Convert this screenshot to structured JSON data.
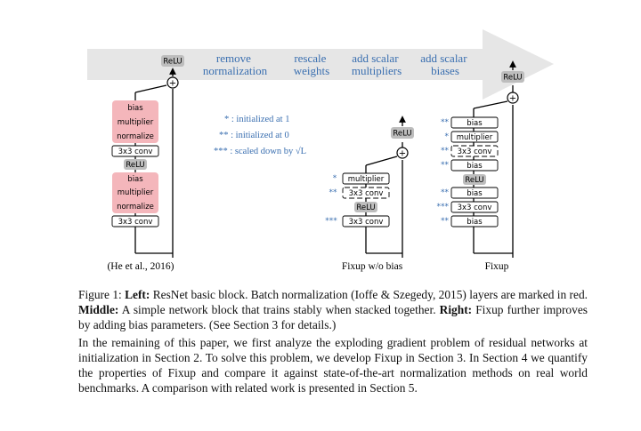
{
  "figure": {
    "stages": [
      "remove\nnormalization",
      "rescale\nweights",
      "add scalar\nmultipliers",
      "add scalar\nbiases"
    ],
    "legend": [
      {
        "mark": "*",
        "text": ": initialized at 1"
      },
      {
        "mark": "**",
        "text": ": initialized at 0"
      },
      {
        "mark": "***",
        "text": ": scaled down by √L"
      }
    ],
    "blocks": {
      "resnet": {
        "caption": "(He et al., 2016)",
        "relu_top": "ReLU",
        "norm_group_top": [
          "bias",
          "multiplier",
          "normalize"
        ],
        "conv_top": "3x3 conv",
        "relu_mid": "ReLU",
        "norm_group_bottom": [
          "bias",
          "multiplier",
          "normalize"
        ],
        "conv_bottom": "3x3 conv",
        "plus": "+"
      },
      "fixup_nobias": {
        "caption": "Fixup w/o bias",
        "relu_top": "ReLU",
        "multiplier": "multiplier",
        "conv_top": "3x3 conv",
        "relu_mid": "ReLU",
        "conv_bottom": "3x3 conv",
        "mark_multiplier": "*",
        "mark_conv_top": "**",
        "mark_conv_bottom": "***",
        "plus": "+"
      },
      "fixup": {
        "caption": "Fixup",
        "relu_top": "ReLU",
        "bias_top": "bias",
        "multiplier": "multiplier",
        "conv_top": "3x3 conv",
        "bias_2": "bias",
        "relu_mid": "ReLU",
        "bias_3": "bias",
        "conv_bottom": "3x3 conv",
        "bias_bottom": "bias",
        "marks": [
          "**",
          "*",
          "**",
          "**",
          "**",
          "***",
          "**"
        ],
        "plus": "+"
      }
    }
  },
  "caption": {
    "label": "Figure 1:",
    "left_label": "Left:",
    "left_text": " ResNet basic block. Batch normalization (Ioffe & Szegedy, 2015) layers are marked in red. ",
    "middle_label": "Middle:",
    "middle_text": " A simple network block that trains stably when stacked together. ",
    "right_label": "Right:",
    "right_text": " Fixup further improves by adding bias parameters. (See Section 3 for details.)"
  },
  "paragraph": "In the remaining of this paper, we first analyze the exploding gradient problem of residual networks at initialization in Section 2. To solve this problem, we develop Fixup in Section 3. In Section 4 we quantify the properties of Fixup and compare it against state-of-the-art normalization methods on real world benchmarks. A comparison with related work is presented in Section 5."
}
